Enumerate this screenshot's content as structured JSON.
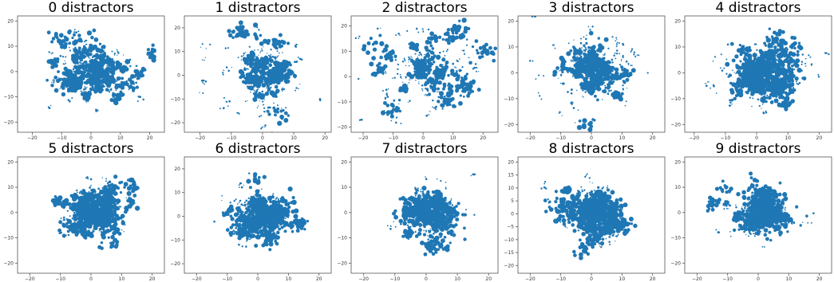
{
  "colors": {
    "points": "#1f77b4",
    "axes": "#555555"
  },
  "chart_data": [
    {
      "type": "scatter",
      "title": "0 distractors",
      "xlim": [
        -25,
        25
      ],
      "ylim": [
        -24,
        22
      ],
      "xticks": [
        -20,
        -10,
        0,
        10,
        20
      ],
      "yticks": [
        -20,
        -10,
        0,
        10,
        20
      ],
      "density": 0.55,
      "spread": 0.85,
      "seed": 11
    },
    {
      "type": "scatter",
      "title": "1 distractors",
      "xlim": [
        -25,
        22
      ],
      "ylim": [
        -24,
        25
      ],
      "xticks": [
        -20,
        -10,
        0,
        10,
        20
      ],
      "yticks": [
        -20,
        -10,
        0,
        10,
        20
      ],
      "density": 0.55,
      "spread": 0.85,
      "seed": 23
    },
    {
      "type": "scatter",
      "title": "2 distractors",
      "xlim": [
        -24,
        25
      ],
      "ylim": [
        -22,
        24
      ],
      "xticks": [
        -20,
        -10,
        0,
        10,
        20
      ],
      "yticks": [
        -20,
        -10,
        0,
        10,
        20
      ],
      "density": 0.45,
      "spread": 0.9,
      "seed": 37
    },
    {
      "type": "scatter",
      "title": "3 distractors",
      "xlim": [
        -24,
        24
      ],
      "ylim": [
        -23,
        22
      ],
      "xticks": [
        -20,
        -10,
        0,
        10,
        20
      ],
      "yticks": [
        -20,
        -10,
        0,
        10,
        20
      ],
      "density": 0.6,
      "spread": 0.75,
      "seed": 41
    },
    {
      "type": "scatter",
      "title": "4 distractors",
      "xlim": [
        -23,
        24
      ],
      "ylim": [
        -23,
        22
      ],
      "xticks": [
        -20,
        -10,
        0,
        10,
        20
      ],
      "yticks": [
        -20,
        -10,
        0,
        10,
        20
      ],
      "density": 0.7,
      "spread": 0.75,
      "seed": 53
    },
    {
      "type": "scatter",
      "title": "5 distractors",
      "xlim": [
        -24,
        24
      ],
      "ylim": [
        -24,
        22
      ],
      "xticks": [
        -20,
        -10,
        0,
        10,
        20
      ],
      "yticks": [
        -20,
        -10,
        0,
        10,
        20
      ],
      "density": 0.85,
      "spread": 0.65,
      "seed": 67
    },
    {
      "type": "scatter",
      "title": "6 distractors",
      "xlim": [
        -24,
        24
      ],
      "ylim": [
        -24,
        25
      ],
      "xticks": [
        -20,
        -10,
        0,
        10,
        20
      ],
      "yticks": [
        -20,
        -10,
        0,
        10,
        20
      ],
      "density": 0.85,
      "spread": 0.65,
      "seed": 79
    },
    {
      "type": "scatter",
      "title": "7 distractors",
      "xlim": [
        -24,
        23
      ],
      "ylim": [
        -24,
        22
      ],
      "xticks": [
        -20,
        -10,
        0,
        10,
        20
      ],
      "yticks": [
        -20,
        -10,
        0,
        10,
        20
      ],
      "density": 0.8,
      "spread": 0.65,
      "seed": 83
    },
    {
      "type": "scatter",
      "title": "8 distractors",
      "xlim": [
        -24,
        24
      ],
      "ylim": [
        -23,
        22
      ],
      "xticks": [
        -20,
        -10,
        0,
        10,
        20
      ],
      "yticks": [
        -20,
        -15,
        -10,
        -5,
        0,
        5,
        10,
        15,
        20
      ],
      "density": 0.8,
      "spread": 0.6,
      "seed": 97
    },
    {
      "type": "scatter",
      "title": "9 distractors",
      "xlim": [
        -24,
        24
      ],
      "ylim": [
        -24,
        22
      ],
      "xticks": [
        -20,
        -10,
        0,
        10,
        20
      ],
      "yticks": [
        -20,
        -10,
        0,
        10,
        20
      ],
      "density": 0.75,
      "spread": 0.6,
      "seed": 101
    }
  ]
}
